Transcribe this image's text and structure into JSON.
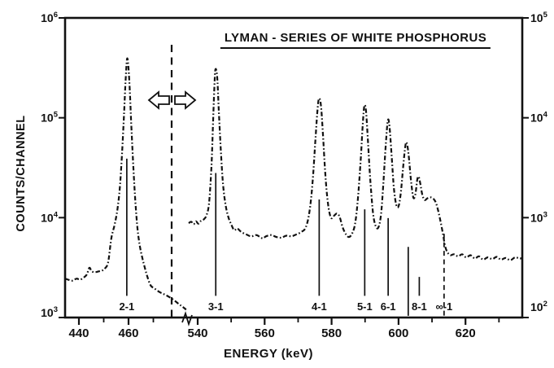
{
  "figure": {
    "title": "LYMAN - SERIES OF WHITE PHOSPHORUS",
    "x_axis_label": "ENERGY (keV)",
    "y_axis_label": "COUNTS/CHANNEL"
  },
  "colors": {
    "ink": "#111111",
    "background": "#ffffff"
  },
  "icons": {
    "left_scale_arrow_icon": "⇦",
    "right_scale_arrow_icon": "⇨"
  },
  "annotations": {
    "scale_divider": {
      "style": "dashed-vertical-line",
      "arrows": [
        "left",
        "right"
      ]
    },
    "x_axis_break_mark": "zigzag"
  },
  "chart_data": {
    "type": "line",
    "title": "LYMAN - SERIES OF WHITE PHOSPHORUS",
    "xlabel": "ENERGY (keV)",
    "ylabel": "COUNTS/CHANNEL",
    "y_scale": "log",
    "grid": false,
    "y_axis_left": {
      "ticks_exp": [
        6,
        5,
        4,
        3
      ],
      "range": [
        1000,
        1000000
      ]
    },
    "y_axis_right": {
      "ticks_exp": [
        5,
        4,
        3,
        2
      ],
      "range": [
        100,
        100000
      ]
    },
    "x_axis": {
      "unit": "keV",
      "break_between": [
        483,
        537
      ],
      "segments": [
        {
          "range": [
            434.5,
            483
          ],
          "major_ticks": [
            440,
            460
          ],
          "minor_ticks": [
            450,
            470
          ]
        },
        {
          "range": [
            537,
            637
          ],
          "major_ticks": [
            540,
            560,
            580,
            600,
            620
          ],
          "minor_ticks": [
            550,
            570,
            590,
            610,
            630
          ]
        }
      ]
    },
    "peak_markers": [
      {
        "label": "2-1",
        "energy_keV": 459.3,
        "axis": "left",
        "line_top_counts": 39000,
        "line_bottom_counts": 1650,
        "style": "solid"
      },
      {
        "label": "3-1",
        "energy_keV": 545.4,
        "axis": "right",
        "line_top_counts": 2800,
        "line_bottom_counts": 165,
        "style": "solid"
      },
      {
        "label": "4-1",
        "energy_keV": 576.3,
        "axis": "right",
        "line_top_counts": 1520,
        "line_bottom_counts": 165,
        "style": "solid"
      },
      {
        "label": "5-1",
        "energy_keV": 589.9,
        "axis": "right",
        "line_top_counts": 1210,
        "line_bottom_counts": 165,
        "style": "solid"
      },
      {
        "label": "6-1",
        "energy_keV": 596.9,
        "axis": "right",
        "line_top_counts": 990,
        "line_bottom_counts": 165,
        "style": "solid"
      },
      {
        "label": "",
        "energy_keV": 602.9,
        "axis": "right",
        "line_top_counts": 510,
        "line_bottom_counts": 104,
        "style": "solid"
      },
      {
        "label": "8-1",
        "energy_keV": 606.2,
        "axis": "right",
        "line_top_counts": 255,
        "line_bottom_counts": 165,
        "style": "solid"
      },
      {
        "label": "∞-1",
        "energy_keV": 613.6,
        "axis": "right",
        "line_top_counts": 690,
        "line_bottom_counts": 104,
        "style": "dashed"
      }
    ],
    "series": [
      {
        "name": "left-of-break",
        "axis": "left",
        "points": [
          [
            434.5,
            2450
          ],
          [
            436,
            2380
          ],
          [
            437.5,
            2340
          ],
          [
            439,
            2450
          ],
          [
            440.5,
            2400
          ],
          [
            442,
            2520
          ],
          [
            443.2,
            2700
          ],
          [
            444.2,
            3150
          ],
          [
            445.2,
            2900
          ],
          [
            446.6,
            2850
          ],
          [
            448,
            2900
          ],
          [
            449.3,
            2950
          ],
          [
            450.5,
            3100
          ],
          [
            451.8,
            3600
          ],
          [
            453.1,
            6300
          ],
          [
            454.4,
            8500
          ],
          [
            455.5,
            12000
          ],
          [
            456.5,
            20000
          ],
          [
            457.4,
            45000
          ],
          [
            458.2,
            110000
          ],
          [
            458.8,
            230000
          ],
          [
            459.4,
            390000
          ],
          [
            460,
            310000
          ],
          [
            460.6,
            170000
          ],
          [
            461.2,
            75000
          ],
          [
            462,
            30000
          ],
          [
            462.8,
            14000
          ],
          [
            463.6,
            7800
          ],
          [
            464.5,
            5300
          ],
          [
            465.5,
            4000
          ],
          [
            466.5,
            3200
          ],
          [
            467.5,
            2600
          ],
          [
            468.9,
            2100
          ],
          [
            470.5,
            1950
          ],
          [
            472.5,
            1800
          ],
          [
            474.5,
            1700
          ],
          [
            476.5,
            1600
          ],
          [
            478.5,
            1480
          ],
          [
            480.5,
            1350
          ],
          [
            482,
            1270
          ],
          [
            483.2,
            1200
          ]
        ]
      },
      {
        "name": "right-of-break",
        "axis": "right",
        "points": [
          [
            537.3,
            880
          ],
          [
            538.1,
            910
          ],
          [
            538.8,
            860
          ],
          [
            539.5,
            920
          ],
          [
            540.2,
            870
          ],
          [
            541,
            930
          ],
          [
            541.8,
            960
          ],
          [
            542.6,
            1050
          ],
          [
            543.4,
            1400
          ],
          [
            544.1,
            3200
          ],
          [
            544.6,
            9000
          ],
          [
            545,
            21000
          ],
          [
            545.3,
            30500
          ],
          [
            545.8,
            26000
          ],
          [
            546.3,
            12000
          ],
          [
            546.9,
            4800
          ],
          [
            547.6,
            2100
          ],
          [
            548.4,
            1300
          ],
          [
            549.2,
            1000
          ],
          [
            550,
            860
          ],
          [
            550.9,
            750
          ],
          [
            551.8,
            780
          ],
          [
            553,
            720
          ],
          [
            554.5,
            680
          ],
          [
            556,
            650
          ],
          [
            557.5,
            670
          ],
          [
            558.6,
            640
          ],
          [
            559.5,
            620
          ],
          [
            560.4,
            650
          ],
          [
            562,
            670
          ],
          [
            563.5,
            640
          ],
          [
            565,
            630
          ],
          [
            566.5,
            660
          ],
          [
            568,
            650
          ],
          [
            569.5,
            680
          ],
          [
            571,
            720
          ],
          [
            572.3,
            800
          ],
          [
            573.4,
            1150
          ],
          [
            574.3,
            2200
          ],
          [
            575.1,
            5500
          ],
          [
            575.7,
            11000
          ],
          [
            576.2,
            15500
          ],
          [
            576.8,
            13500
          ],
          [
            577.4,
            7000
          ],
          [
            578.1,
            2800
          ],
          [
            578.9,
            1400
          ],
          [
            579.8,
            1000
          ],
          [
            580.8,
            1050
          ],
          [
            581.6,
            1100
          ],
          [
            582.4,
            1020
          ],
          [
            583.3,
            800
          ],
          [
            584.3,
            680
          ],
          [
            585.2,
            640
          ],
          [
            586.2,
            700
          ],
          [
            587.1,
            900
          ],
          [
            587.9,
            1600
          ],
          [
            588.7,
            3800
          ],
          [
            589.3,
            8500
          ],
          [
            589.8,
            13200
          ],
          [
            590.3,
            11500
          ],
          [
            590.9,
            5500
          ],
          [
            591.6,
            2300
          ],
          [
            592.4,
            1100
          ],
          [
            593.2,
            820
          ],
          [
            594,
            800
          ],
          [
            594.8,
            1100
          ],
          [
            595.5,
            2300
          ],
          [
            596.2,
            5500
          ],
          [
            596.8,
            9400
          ],
          [
            597.3,
            8200
          ],
          [
            597.9,
            4300
          ],
          [
            598.6,
            2000
          ],
          [
            599.3,
            1350
          ],
          [
            600,
            1300
          ],
          [
            600.7,
            1800
          ],
          [
            601.4,
            3300
          ],
          [
            602,
            5100
          ],
          [
            602.4,
            5650
          ],
          [
            603,
            4300
          ],
          [
            603.7,
            2400
          ],
          [
            604.4,
            1600
          ],
          [
            605,
            1700
          ],
          [
            605.6,
            2400
          ],
          [
            606,
            2570
          ],
          [
            606.5,
            2200
          ],
          [
            607.1,
            1700
          ],
          [
            607.8,
            1500
          ],
          [
            608.6,
            1560
          ],
          [
            609.5,
            1600
          ],
          [
            610.4,
            1550
          ],
          [
            611.2,
            1400
          ],
          [
            611.9,
            1150
          ],
          [
            612.6,
            900
          ],
          [
            613.3,
            680
          ],
          [
            613.9,
            520
          ],
          [
            614.6,
            450
          ],
          [
            615.5,
            420
          ],
          [
            616.5,
            430
          ],
          [
            617.8,
            410
          ],
          [
            619,
            430
          ],
          [
            620.2,
            400
          ],
          [
            621.5,
            420
          ],
          [
            622.8,
            390
          ],
          [
            624,
            410
          ],
          [
            625.3,
            380
          ],
          [
            626.6,
            400
          ],
          [
            628,
            385
          ],
          [
            629.3,
            405
          ],
          [
            630.6,
            380
          ],
          [
            632,
            395
          ],
          [
            633.4,
            375
          ],
          [
            634.8,
            400
          ],
          [
            636.2,
            390
          ],
          [
            637,
            395
          ]
        ]
      }
    ]
  }
}
